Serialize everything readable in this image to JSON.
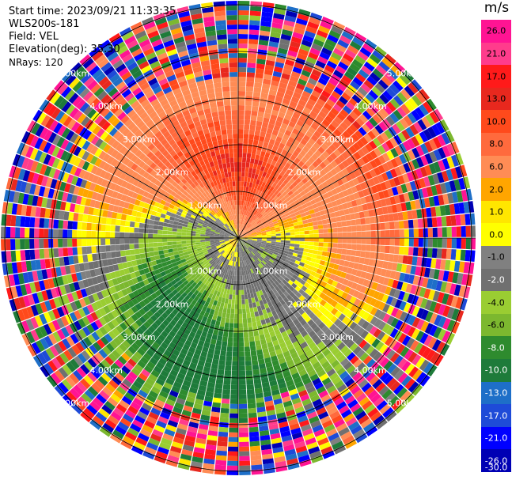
{
  "header": {
    "start_time": "Start time: 2023/09/21 11:33:35",
    "instrument": "WLS200s-181",
    "field": "Field: VEL",
    "elevation": "Elevation(deg): 35.30",
    "nrays": "NRays: 120"
  },
  "range_rings": [
    "1.00km",
    "2.00km",
    "3.00km",
    "4.00km",
    "5.00km"
  ],
  "colorbar": {
    "unit": "m/s",
    "ticks": [
      "26.0",
      "21.0",
      "17.0",
      "13.0",
      "10.0",
      "8.0",
      "6.0",
      "2.0",
      "1.0",
      "0.0",
      "-1.0",
      "-2.0",
      "-4.0",
      "-6.0",
      "-8.0",
      "-10.0",
      "-13.0",
      "-17.0",
      "-21.0",
      "-26.0",
      "-30.0"
    ],
    "colors": [
      "#ff1493",
      "#ff3c8c",
      "#ff1a1a",
      "#e8281e",
      "#ff4a1c",
      "#ff6a3d",
      "#ff8c55",
      "#ffa500",
      "#ffe600",
      "#ffff00",
      "#808080",
      "#707070",
      "#9acd32",
      "#7cb82f",
      "#2e8b2e",
      "#1e7b3a",
      "#1e6fc8",
      "#1e4bd8",
      "#0000ff",
      "#0000b4",
      "#000080"
    ]
  }
}
